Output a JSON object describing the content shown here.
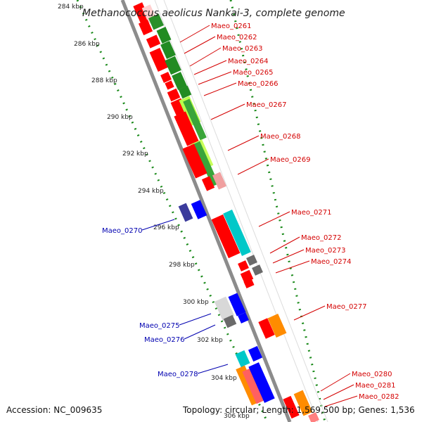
{
  "title": "Methanococcus aeolicus Nankai-3, complete genome",
  "accession": "Accession: NC_009635",
  "topology": "Topology: circular; Length: 1,569,500 bp; Genes: 1,536",
  "colors": {
    "forward_cds": "#ff0000",
    "reverse_cds": "#0000ff",
    "forward_label": "#d40000",
    "reverse_label": "#0000b0",
    "tick_dots": "#1a8a1a",
    "backbone": "#8c8c8c"
  },
  "ticks": [
    "284 kbp",
    "286 kbp",
    "288 kbp",
    "290 kbp",
    "292 kbp",
    "294 kbp",
    "296 kbp",
    "298 kbp",
    "300 kbp",
    "302 kbp",
    "304 kbp",
    "306 kbp"
  ],
  "genes_forward": [
    "Maeo_0261",
    "Maeo_0262",
    "Maeo_0263",
    "Maeo_0264",
    "Maeo_0265",
    "Maeo_0266",
    "Maeo_0267",
    "Maeo_0268",
    "Maeo_0269",
    "Maeo_0271",
    "Maeo_0272",
    "Maeo_0273",
    "Maeo_0274",
    "Maeo_0277",
    "Maeo_0280",
    "Maeo_0281",
    "Maeo_0282"
  ],
  "genes_reverse": [
    "Maeo_0270",
    "Maeo_0275",
    "Maeo_0276",
    "Maeo_0278"
  ]
}
